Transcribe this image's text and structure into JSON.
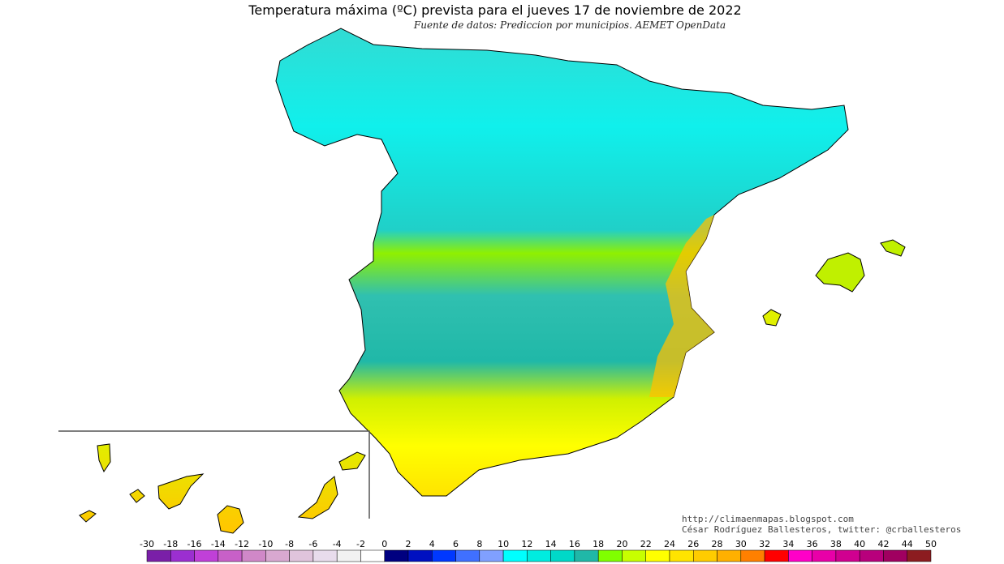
{
  "header": {
    "title": "Temperatura máxima (ºC) prevista para el jueves 17 de noviembre de 2022",
    "source": "Fuente de datos: Prediccion por municipios. AEMET OpenData"
  },
  "credits": {
    "url": "http://climaenmapas.blogspot.com",
    "author": "César Rodríguez Ballesteros, twitter: @crballesteros"
  },
  "colorbar": {
    "ticks": [
      -30,
      -18,
      -16,
      -14,
      -12,
      -10,
      -8,
      -6,
      -4,
      -2,
      0,
      2,
      4,
      6,
      8,
      10,
      12,
      14,
      16,
      18,
      20,
      22,
      24,
      26,
      28,
      30,
      32,
      34,
      36,
      38,
      40,
      42,
      44,
      50
    ],
    "colors": [
      "#7a1fa8",
      "#9b2fd0",
      "#c040d8",
      "#c860c8",
      "#d088c8",
      "#d8a8d0",
      "#e0c4dc",
      "#e8dcec",
      "#f2f2f2",
      "#ffffff",
      "#000080",
      "#0010c0",
      "#0038ff",
      "#4070ff",
      "#80a0ff",
      "#00ffff",
      "#00ece0",
      "#00d8c8",
      "#20b8a8",
      "#80ff00",
      "#c8ff00",
      "#ffff00",
      "#ffe400",
      "#ffcc00",
      "#ffb000",
      "#ff8000",
      "#ff0000",
      "#ff00c8",
      "#e800a8",
      "#d00090",
      "#b8007c",
      "#a00060",
      "#8c1c20"
    ]
  }
}
